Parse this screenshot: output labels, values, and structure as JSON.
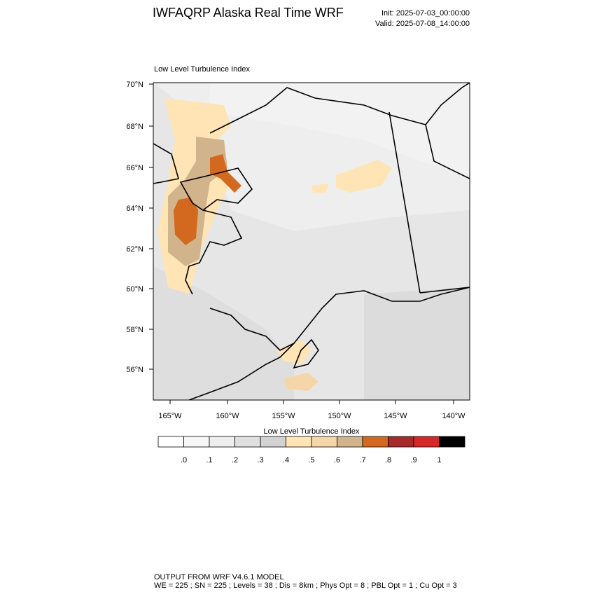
{
  "header": {
    "title": "IWFAQRP Alaska Real Time WRF",
    "init": "Init: 2025-07-03_00:00:00",
    "valid": "Valid: 2025-07-08_14:00:00"
  },
  "map": {
    "title": "Low Level Turbulence Index",
    "lat_labels": [
      "70°N",
      "68°N",
      "66°N",
      "64°N",
      "62°N",
      "60°N",
      "58°N",
      "56°N"
    ],
    "lon_labels": [
      "165°W",
      "160°W",
      "155°W",
      "150°W",
      "145°W",
      "140°W"
    ]
  },
  "colorbar": {
    "title": "Low Level Turbulence Index",
    "colors": [
      "#ffffff",
      "#f7f7f7",
      "#eeeeee",
      "#e0e0e0",
      "#d2d2d2",
      "#ffe4b5",
      "#f5d6a8",
      "#d2b48c",
      "#d2691e",
      "#a52a2a",
      "#d62828",
      "#000000"
    ],
    "labels": [
      ".0",
      ".1",
      ".2",
      ".3",
      ".4",
      ".5",
      ".6",
      ".7",
      ".8",
      ".9",
      "1"
    ]
  },
  "footer": {
    "line1": "OUTPUT FROM WRF V4.6.1 MODEL",
    "line2": "WE = 225 ; SN = 225 ; Levels = 38 ; Dis = 8km ; Phys Opt = 8 ; PBL Opt = 1 ; Cu Opt = 3"
  }
}
